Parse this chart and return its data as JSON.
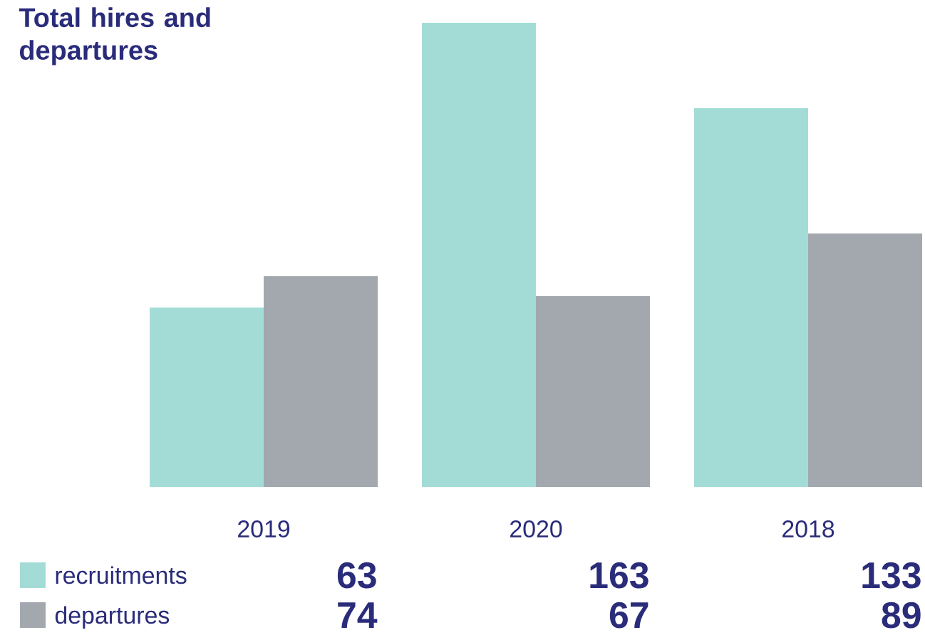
{
  "chart_data": {
    "type": "bar",
    "title": "Total hires and departures",
    "categories": [
      "2019",
      "2020",
      "2018"
    ],
    "series": [
      {
        "name": "recruitments",
        "color": "#a3dcd6",
        "values": [
          63,
          163,
          133
        ]
      },
      {
        "name": "departures",
        "color": "#a2a8ae",
        "values": [
          74,
          67,
          89
        ]
      }
    ],
    "data_labels": true,
    "legend": "bottom left"
  }
}
